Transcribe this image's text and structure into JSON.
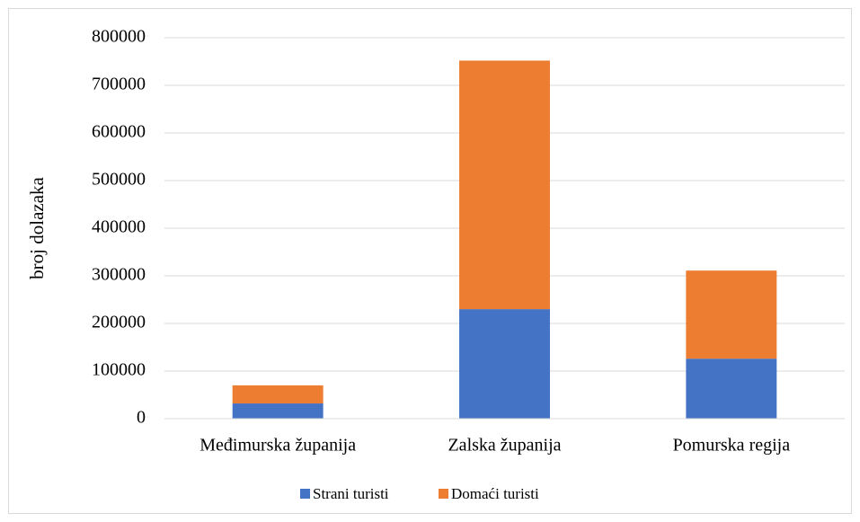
{
  "chart_data": {
    "type": "stacked_bar",
    "y_label": "broj dolazaka",
    "categories": [
      "Međimurska županija",
      "Zalska županija",
      "Pomurska regija"
    ],
    "series": [
      {
        "name": "Strani turisti",
        "color": "#4472c4",
        "values": [
          32000,
          230000,
          126000
        ]
      },
      {
        "name": "Domaći turisti",
        "color": "#ed7d31",
        "values": [
          38000,
          522000,
          185000
        ]
      }
    ],
    "ylim": [
      0,
      800000
    ],
    "yticks": [
      0,
      100000,
      200000,
      300000,
      400000,
      500000,
      600000,
      700000,
      800000
    ],
    "grid": true,
    "legend": "bottom"
  }
}
